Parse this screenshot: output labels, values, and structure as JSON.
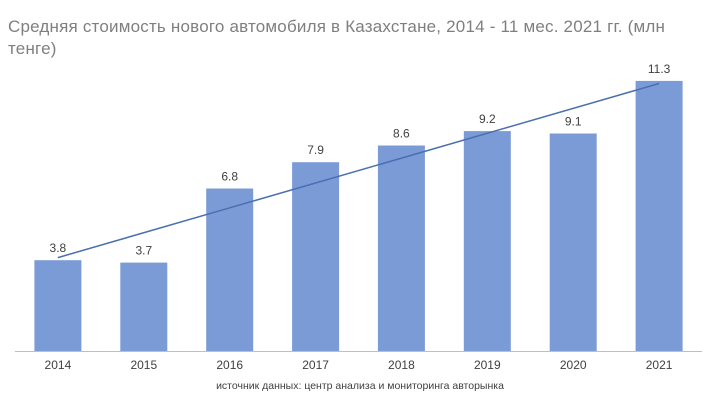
{
  "chart_data": {
    "type": "bar",
    "title": "Средняя стоимость нового автомобиля в Казахстане, 2014 - 11 мес. 2021 гг. (млн тенге)",
    "categories": [
      "2014",
      "2015",
      "2016",
      "2017",
      "2018",
      "2019",
      "2020",
      "2021"
    ],
    "values": [
      3.8,
      3.7,
      6.8,
      7.9,
      8.6,
      9.2,
      9.1,
      11.3
    ],
    "data_labels": [
      "3.8",
      "3.7",
      "6.8",
      "7.9",
      "8.6",
      "9.2",
      "9.1",
      "11.3"
    ],
    "trendline": "linear",
    "ylim": [
      0,
      12
    ],
    "grid": false,
    "legend": "none",
    "xlabel": "",
    "ylabel": "",
    "colors": {
      "bar": "#7b9bd6",
      "trendline": "#4a6fb1",
      "axis": "#bfbfbf"
    },
    "source_note": "источник данных: центр анализа и мониторинга авторынка"
  }
}
